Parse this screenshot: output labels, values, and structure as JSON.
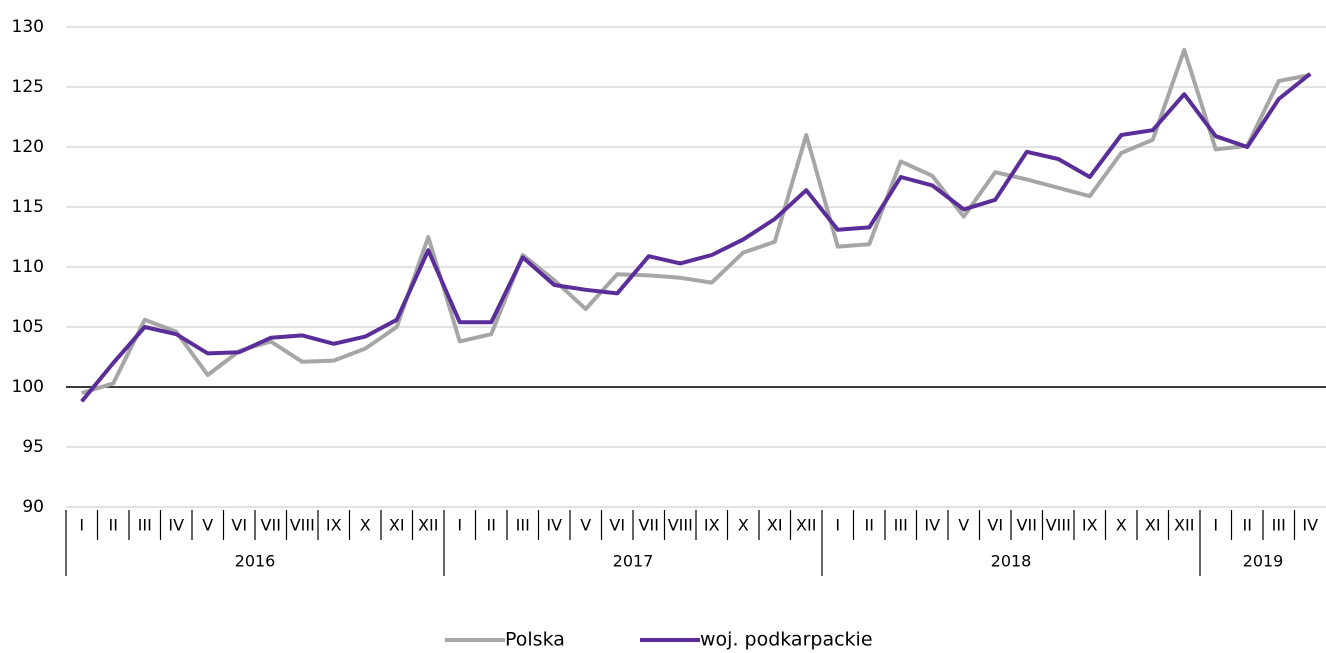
{
  "chart_data": {
    "type": "line",
    "groups": [
      {
        "name": "2016",
        "categories": [
          "I",
          "II",
          "III",
          "IV",
          "V",
          "VI",
          "VII",
          "VIII",
          "IX",
          "X",
          "XI",
          "XII"
        ]
      },
      {
        "name": "2017",
        "categories": [
          "I",
          "II",
          "III",
          "IV",
          "V",
          "VI",
          "VII",
          "VIII",
          "IX",
          "X",
          "XI",
          "XII"
        ]
      },
      {
        "name": "2018",
        "categories": [
          "I",
          "II",
          "III",
          "IV",
          "V",
          "VI",
          "VII",
          "VIII",
          "IX",
          "X",
          "XI",
          "XII"
        ]
      },
      {
        "name": "2019",
        "categories": [
          "I",
          "II",
          "III",
          "IV"
        ]
      }
    ],
    "series": [
      {
        "name": "Polska",
        "color": "#a6a6a6",
        "values": [
          99.5,
          100.3,
          105.6,
          104.6,
          101.0,
          103.0,
          103.8,
          102.1,
          102.2,
          103.2,
          105.0,
          112.5,
          103.8,
          104.4,
          111.0,
          108.9,
          106.5,
          109.4,
          109.3,
          109.1,
          108.7,
          111.2,
          112.1,
          121.0,
          111.7,
          111.9,
          118.8,
          117.6,
          114.2,
          117.9,
          117.3,
          116.6,
          115.9,
          119.5,
          120.6,
          128.1,
          119.8,
          120.1,
          125.5,
          126.0
        ]
      },
      {
        "name": "woj. podkarpackie",
        "color": "#5a2d98",
        "values": [
          98.8,
          102.0,
          105.0,
          104.4,
          102.8,
          102.9,
          104.1,
          104.3,
          103.6,
          104.2,
          105.6,
          111.4,
          105.4,
          105.4,
          110.8,
          108.5,
          108.1,
          107.8,
          110.9,
          110.3,
          111.0,
          112.3,
          114.0,
          116.4,
          113.1,
          113.3,
          117.5,
          116.8,
          114.8,
          115.6,
          119.6,
          119.0,
          117.5,
          121.0,
          121.4,
          124.4,
          120.9,
          120.0,
          124.0,
          126.1
        ]
      }
    ],
    "ylim": [
      90,
      130
    ],
    "yticks": [
      90,
      95,
      100,
      105,
      110,
      115,
      120,
      125,
      130
    ],
    "reference_line": 100,
    "grid": true,
    "legend": "bottom"
  }
}
